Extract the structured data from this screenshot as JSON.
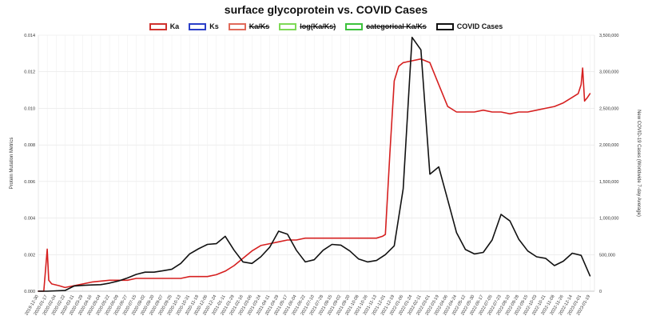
{
  "chart_data": {
    "type": "line",
    "title": "surface glycoprotein vs. COVID Cases",
    "ylabel_left": "Protein Mutation Metrics",
    "ylabel_right": "New COVID-19 Cases (Worldwide 7-day Average)",
    "y_left_range": [
      0,
      0.014
    ],
    "y_right_range": [
      0,
      3500000
    ],
    "y_left_ticks": [
      "0.000",
      "0.002",
      "0.004",
      "0.006",
      "0.008",
      "0.010",
      "0.012",
      "0.014"
    ],
    "y_right_ticks": [
      "0",
      "500,000",
      "1,000,000",
      "1,500,000",
      "2,000,000",
      "2,500,000",
      "3,000,000",
      "3,500,000"
    ],
    "x_ticks": [
      "2019-12-30",
      "2020-01-17",
      "2020-02-04",
      "2020-02-22",
      "2020-03-11",
      "2020-03-29",
      "2020-04-16",
      "2020-05-04",
      "2020-05-22",
      "2020-06-09",
      "2020-06-27",
      "2020-07-15",
      "2020-08-02",
      "2020-08-20",
      "2020-09-07",
      "2020-09-25",
      "2020-10-13",
      "2020-10-31",
      "2020-11-18",
      "2020-12-06",
      "2020-12-24",
      "2021-01-11",
      "2021-01-29",
      "2021-02-16",
      "2021-03-06",
      "2021-03-24",
      "2021-04-11",
      "2021-04-29",
      "2021-05-17",
      "2021-06-04",
      "2021-06-22",
      "2021-07-10",
      "2021-07-28",
      "2021-08-15",
      "2021-09-02",
      "2021-09-20",
      "2021-10-08",
      "2021-10-26",
      "2021-11-13",
      "2021-12-01",
      "2021-12-19",
      "2022-01-06",
      "2022-01-24",
      "2022-02-11",
      "2022-03-01",
      "2022-03-19",
      "2022-04-06",
      "2022-04-24",
      "2022-05-12",
      "2022-05-30",
      "2022-06-17",
      "2022-07-05",
      "2022-07-23",
      "2022-08-10",
      "2022-08-28",
      "2022-09-15",
      "2022-10-03",
      "2022-10-21",
      "2022-11-08",
      "2022-11-26",
      "2022-12-14",
      "2023-01-01",
      "2023-01-19"
    ],
    "grid": true,
    "legend_position": "top-center",
    "legend": [
      {
        "label": "Ka",
        "color": "#d0312d",
        "struck": false
      },
      {
        "label": "Ks",
        "color": "#2b3fc8",
        "struck": false
      },
      {
        "label": "Ka/Ks",
        "color": "#e06a5a",
        "struck": true
      },
      {
        "label": "log(Ka/Ks)",
        "color": "#7ed957",
        "struck": true
      },
      {
        "label": "categorical Ka/Ks",
        "color": "#3cc23c",
        "struck": true
      },
      {
        "label": "COVID Cases",
        "color": "#111111",
        "struck": false
      }
    ],
    "series": [
      {
        "name": "Ka",
        "axis": "left",
        "color": "#d62020",
        "x": [
          "2019-12-30",
          "2020-01-10",
          "2020-01-17",
          "2020-01-20",
          "2020-01-26",
          "2020-02-10",
          "2020-02-22",
          "2020-03-11",
          "2020-03-29",
          "2020-04-16",
          "2020-05-22",
          "2020-06-27",
          "2020-07-15",
          "2020-08-02",
          "2020-08-20",
          "2020-09-07",
          "2020-09-25",
          "2020-10-13",
          "2020-10-31",
          "2020-11-18",
          "2020-12-06",
          "2020-12-24",
          "2021-01-11",
          "2021-01-29",
          "2021-02-16",
          "2021-03-06",
          "2021-03-24",
          "2021-04-11",
          "2021-04-29",
          "2021-05-17",
          "2021-06-04",
          "2021-06-22",
          "2021-07-10",
          "2021-07-28",
          "2021-08-15",
          "2021-09-02",
          "2021-09-20",
          "2021-10-08",
          "2021-10-26",
          "2021-11-13",
          "2021-11-25",
          "2021-12-01",
          "2021-12-10",
          "2021-12-19",
          "2021-12-28",
          "2022-01-06",
          "2022-01-24",
          "2022-02-11",
          "2022-03-01",
          "2022-03-19",
          "2022-04-06",
          "2022-04-24",
          "2022-05-12",
          "2022-05-30",
          "2022-06-17",
          "2022-07-05",
          "2022-07-23",
          "2022-08-10",
          "2022-08-28",
          "2022-09-15",
          "2022-10-03",
          "2022-10-21",
          "2022-11-08",
          "2022-11-26",
          "2022-12-14",
          "2022-12-26",
          "2023-01-01",
          "2023-01-04",
          "2023-01-08",
          "2023-01-14",
          "2023-01-19"
        ],
        "values": [
          0.0,
          0.0,
          0.0023,
          0.0006,
          0.0004,
          0.0003,
          0.0002,
          0.0003,
          0.0004,
          0.0005,
          0.0006,
          0.0006,
          0.0007,
          0.0007,
          0.0007,
          0.0007,
          0.0007,
          0.0007,
          0.0008,
          0.0008,
          0.0008,
          0.0009,
          0.0011,
          0.0014,
          0.0018,
          0.0022,
          0.0025,
          0.0026,
          0.0027,
          0.0028,
          0.0028,
          0.0029,
          0.0029,
          0.0029,
          0.0029,
          0.0029,
          0.0029,
          0.0029,
          0.0029,
          0.0029,
          0.003,
          0.0031,
          0.0075,
          0.0115,
          0.0123,
          0.0125,
          0.0126,
          0.0127,
          0.0125,
          0.0113,
          0.0101,
          0.0098,
          0.0098,
          0.0098,
          0.0099,
          0.0098,
          0.0098,
          0.0097,
          0.0098,
          0.0098,
          0.0099,
          0.01,
          0.0101,
          0.0103,
          0.0106,
          0.0108,
          0.0113,
          0.0122,
          0.0104,
          0.0106,
          0.0108
        ]
      },
      {
        "name": "COVID Cases",
        "axis": "right",
        "color": "#111111",
        "x": [
          "2019-12-30",
          "2020-01-17",
          "2020-02-04",
          "2020-02-22",
          "2020-03-11",
          "2020-03-29",
          "2020-04-16",
          "2020-05-04",
          "2020-05-22",
          "2020-06-09",
          "2020-06-27",
          "2020-07-15",
          "2020-08-02",
          "2020-08-20",
          "2020-09-07",
          "2020-09-25",
          "2020-10-13",
          "2020-10-31",
          "2020-11-18",
          "2020-12-06",
          "2020-12-24",
          "2021-01-11",
          "2021-01-29",
          "2021-02-16",
          "2021-03-06",
          "2021-03-24",
          "2021-04-11",
          "2021-04-29",
          "2021-05-17",
          "2021-06-04",
          "2021-06-22",
          "2021-07-10",
          "2021-07-28",
          "2021-08-15",
          "2021-09-02",
          "2021-09-20",
          "2021-10-08",
          "2021-10-26",
          "2021-11-13",
          "2021-12-01",
          "2021-12-19",
          "2022-01-06",
          "2022-01-24",
          "2022-02-11",
          "2022-03-01",
          "2022-03-19",
          "2022-04-06",
          "2022-04-24",
          "2022-05-12",
          "2022-05-30",
          "2022-06-17",
          "2022-07-05",
          "2022-07-23",
          "2022-08-10",
          "2022-08-28",
          "2022-09-15",
          "2022-10-03",
          "2022-10-21",
          "2022-11-08",
          "2022-11-26",
          "2022-12-14",
          "2023-01-01",
          "2023-01-19"
        ],
        "values": [
          0,
          0,
          5000,
          10000,
          70000,
          80000,
          85000,
          90000,
          110000,
          140000,
          180000,
          230000,
          260000,
          260000,
          280000,
          300000,
          380000,
          510000,
          580000,
          640000,
          650000,
          750000,
          560000,
          400000,
          380000,
          470000,
          600000,
          820000,
          780000,
          560000,
          400000,
          430000,
          560000,
          640000,
          630000,
          550000,
          440000,
          400000,
          420000,
          500000,
          620000,
          1400000,
          3470000,
          3300000,
          1600000,
          1700000,
          1250000,
          800000,
          570000,
          510000,
          530000,
          700000,
          1050000,
          960000,
          710000,
          550000,
          470000,
          450000,
          350000,
          410000,
          520000,
          490000,
          210000
        ]
      }
    ]
  }
}
